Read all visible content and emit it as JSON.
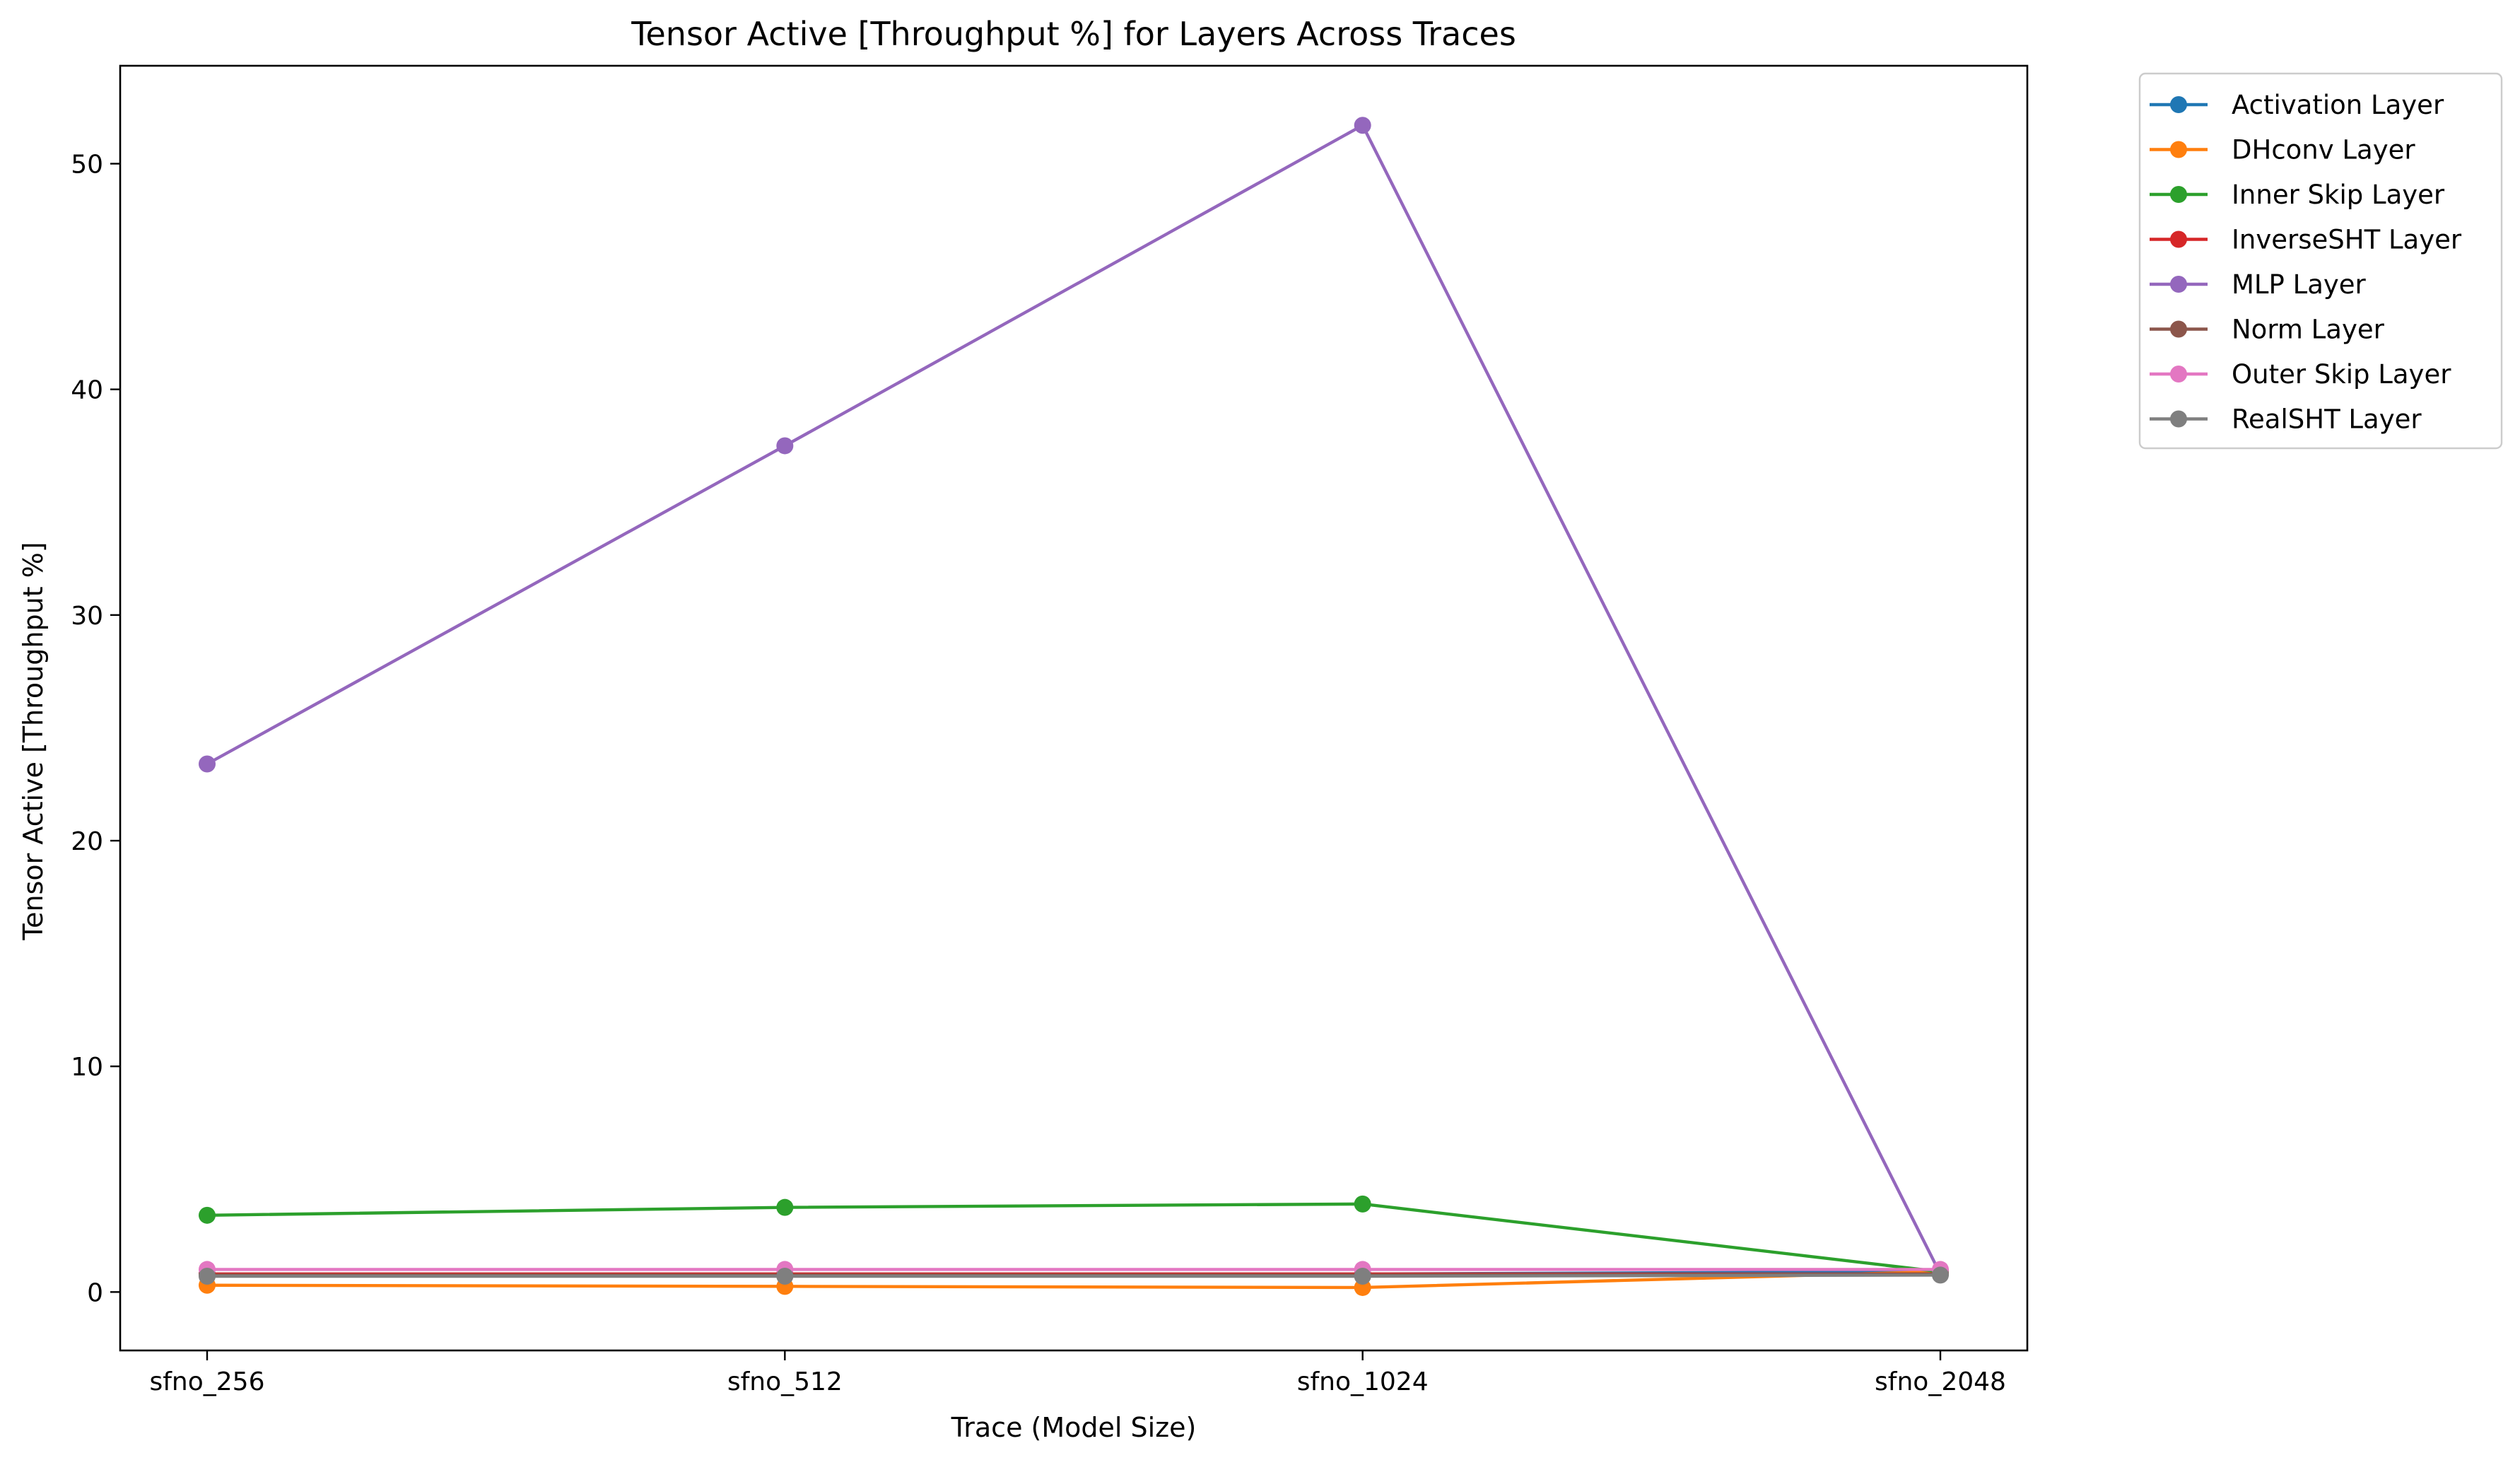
{
  "chart_data": {
    "type": "line",
    "title": "Tensor Active [Throughput %] for Layers Across Traces",
    "xlabel": "Trace (Model Size)",
    "ylabel": "Tensor Active [Throughput %]",
    "categories": [
      "sfno_256",
      "sfno_512",
      "sfno_1024",
      "sfno_2048"
    ],
    "ylim": [
      -2.59,
      54.34
    ],
    "yticks": [
      0,
      10,
      20,
      30,
      40,
      50
    ],
    "grid": false,
    "legend_position": "outside-right-top",
    "series": [
      {
        "name": "Activation Layer",
        "color": "#1f77b4",
        "values": [
          0.8,
          0.8,
          0.8,
          0.9
        ]
      },
      {
        "name": "DHconv Layer",
        "color": "#ff7f0e",
        "values": [
          0.3,
          0.25,
          0.2,
          0.9
        ]
      },
      {
        "name": "Inner Skip Layer",
        "color": "#2ca02c",
        "values": [
          3.4,
          3.75,
          3.9,
          0.9
        ]
      },
      {
        "name": "InverseSHT Layer",
        "color": "#d62728",
        "values": [
          0.8,
          0.8,
          0.8,
          0.8
        ]
      },
      {
        "name": "MLP Layer",
        "color": "#9467bd",
        "values": [
          23.4,
          37.5,
          51.7,
          0.8
        ]
      },
      {
        "name": "Norm Layer",
        "color": "#8c564b",
        "values": [
          0.75,
          0.75,
          0.75,
          0.8
        ]
      },
      {
        "name": "Outer Skip Layer",
        "color": "#e377c2",
        "values": [
          1.0,
          1.0,
          1.0,
          1.0
        ]
      },
      {
        "name": "RealSHT Layer",
        "color": "#7f7f7f",
        "values": [
          0.7,
          0.7,
          0.7,
          0.75
        ]
      }
    ]
  }
}
